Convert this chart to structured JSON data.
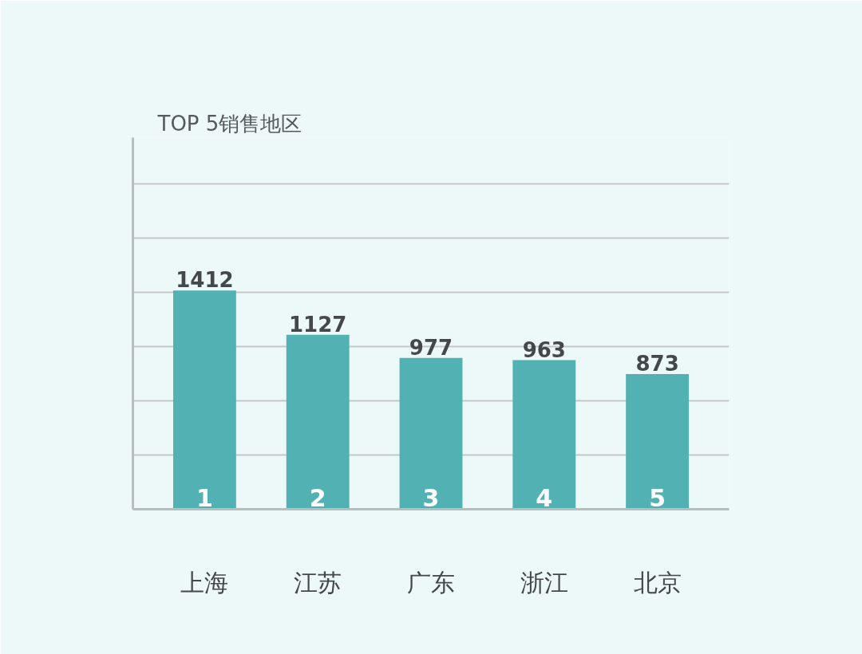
{
  "chart_data": {
    "type": "bar",
    "title": "TOP 5销售地区",
    "categories": [
      "上海",
      "江苏",
      "广东",
      "浙江",
      "北京"
    ],
    "values": [
      1412,
      1127,
      977,
      963,
      873
    ],
    "color": "#52b1b2",
    "data_labels": true,
    "ylim": [
      0,
      2400
    ],
    "yticks": [
      {
        "value": 350,
        "label": null
      },
      {
        "value": 700,
        "label": null
      },
      {
        "value": 1050,
        "label": null
      },
      {
        "value": 1400,
        "label": null
      },
      {
        "value": 1750,
        "label": null
      },
      {
        "value": 2100,
        "label": null
      }
    ],
    "grid": "y",
    "tick_labels": "x",
    "annotations": [
      "1",
      "2",
      "3",
      "4",
      "5"
    ]
  }
}
